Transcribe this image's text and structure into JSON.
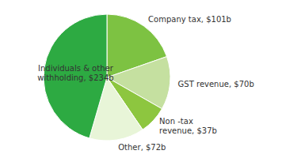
{
  "chart_data": {
    "type": "pie",
    "categories": [
      "Company tax, $101b",
      "GST revenue, $70b",
      "Non -tax\nrevenue, $37b",
      "Other, $72b",
      "Individuals & other\nwithholding, $234b"
    ],
    "values": [
      101,
      70,
      37,
      72,
      234
    ],
    "colors": [
      "#7dc242",
      "#c5e0a0",
      "#8dc63f",
      "#e8f5d8",
      "#2daa42"
    ]
  }
}
